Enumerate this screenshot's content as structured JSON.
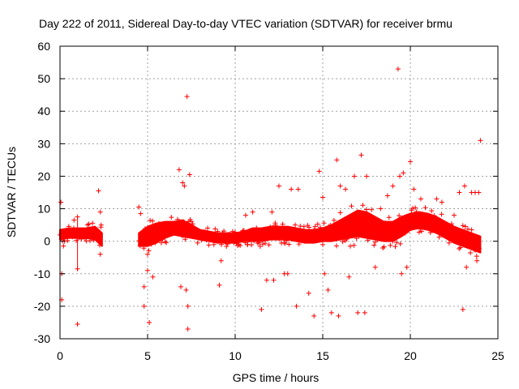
{
  "chart_data": {
    "type": "scatter",
    "title": "Day 222 of 2011, Sidereal Day-to-day VTEC variation (SDTVAR) for receiver brmu",
    "xlabel": "GPS time / hours",
    "ylabel": "SDTVAR / TECUs",
    "xlim": [
      0,
      25
    ],
    "ylim": [
      -30,
      60
    ],
    "xticks": [
      0,
      5,
      10,
      15,
      20,
      25
    ],
    "yticks": [
      -30,
      -20,
      -10,
      0,
      10,
      20,
      30,
      40,
      50,
      60
    ],
    "grid": true,
    "marker": "+",
    "color": "#ff0000",
    "legend": "none",
    "band_series": {
      "name": "SDTVAR dense band (mean and spread)",
      "x": [
        0.0,
        0.5,
        1.0,
        1.5,
        2.0,
        2.4,
        4.5,
        5.0,
        5.5,
        6.0,
        6.5,
        7.0,
        7.5,
        8.0,
        8.5,
        9.0,
        9.5,
        10.0,
        10.5,
        11.0,
        11.5,
        12.0,
        12.5,
        13.0,
        13.5,
        14.0,
        14.5,
        15.0,
        15.5,
        16.0,
        16.5,
        17.0,
        17.5,
        18.0,
        18.5,
        19.0,
        19.5,
        20.0,
        20.5,
        21.0,
        21.5,
        22.0,
        22.5,
        23.0,
        23.5,
        24.0
      ],
      "center": [
        2.0,
        2.5,
        2.5,
        2.5,
        2.5,
        0.5,
        0.5,
        1.5,
        2.5,
        3.5,
        4.0,
        4.0,
        3.0,
        2.0,
        1.5,
        1.0,
        1.0,
        1.0,
        1.5,
        2.0,
        2.0,
        2.5,
        2.5,
        2.5,
        2.0,
        1.5,
        1.5,
        2.0,
        2.5,
        3.5,
        4.5,
        5.5,
        5.0,
        4.0,
        3.0,
        3.0,
        4.5,
        6.0,
        6.5,
        6.0,
        5.0,
        3.5,
        2.0,
        1.0,
        0.0,
        -1.0
      ],
      "spread": [
        1.5,
        1.5,
        1.5,
        1.5,
        2.0,
        2.0,
        2.0,
        3.0,
        3.0,
        2.5,
        2.0,
        2.5,
        2.0,
        1.5,
        1.5,
        1.5,
        1.5,
        1.5,
        1.5,
        2.0,
        2.0,
        2.0,
        2.0,
        2.0,
        2.0,
        2.0,
        2.0,
        2.0,
        2.5,
        3.0,
        3.5,
        4.0,
        4.0,
        3.5,
        3.0,
        3.0,
        3.0,
        2.5,
        2.5,
        2.5,
        2.5,
        2.5,
        2.5,
        2.5,
        2.5,
        2.5
      ]
    },
    "outliers": {
      "name": "SDTVAR outliers",
      "x": [
        0.05,
        0.1,
        0.1,
        0.2,
        0.25,
        0.5,
        0.8,
        1.0,
        1.0,
        1.0,
        1.6,
        2.2,
        2.3,
        2.3,
        2.35,
        4.5,
        4.6,
        4.8,
        4.8,
        5.0,
        5.0,
        5.1,
        5.3,
        5.5,
        6.8,
        6.9,
        7.0,
        7.1,
        7.2,
        7.25,
        7.3,
        7.3,
        7.4,
        9.1,
        9.2,
        10.6,
        10.7,
        11.0,
        11.5,
        11.8,
        12.1,
        12.2,
        12.3,
        12.5,
        12.8,
        13.0,
        13.2,
        13.5,
        13.6,
        14.0,
        14.2,
        14.5,
        14.8,
        15.0,
        15.1,
        15.3,
        15.5,
        15.8,
        15.9,
        16.0,
        16.3,
        16.5,
        16.8,
        17.0,
        17.2,
        17.4,
        17.5,
        17.6,
        18.0,
        18.3,
        18.7,
        19.0,
        19.3,
        19.4,
        19.5,
        19.6,
        19.8,
        20.0,
        20.2,
        20.6,
        21.5,
        21.8,
        22.5,
        22.8,
        23.0,
        23.1,
        23.2,
        23.5,
        23.7,
        23.8,
        23.9,
        24.0
      ],
      "y": [
        12,
        -10,
        -18,
        -1.5,
        0,
        2.5,
        6.5,
        7.5,
        -8.5,
        -25.5,
        2.5,
        15.5,
        9,
        -4,
        5,
        10.5,
        8.5,
        -20,
        -14,
        -4,
        -9,
        -25,
        -11,
        0,
        22,
        -14,
        18,
        17,
        -15,
        44.5,
        -27,
        -20,
        20.5,
        -13.5,
        -6,
        8,
        -1,
        9,
        -21,
        -12,
        9,
        -12,
        5,
        17,
        -10,
        -10,
        16,
        -20,
        16,
        0,
        -16,
        -23,
        21.5,
        13.5,
        -10,
        -15,
        -22,
        25,
        -23,
        17,
        16,
        -11,
        20,
        -22,
        26.5,
        -22,
        20,
        7,
        -8,
        10,
        14,
        17,
        53,
        20,
        -10,
        21,
        -8,
        24.5,
        16,
        13,
        13,
        12,
        8,
        15,
        -21,
        17,
        -8,
        15,
        15,
        -6,
        15,
        31
      ]
    }
  }
}
